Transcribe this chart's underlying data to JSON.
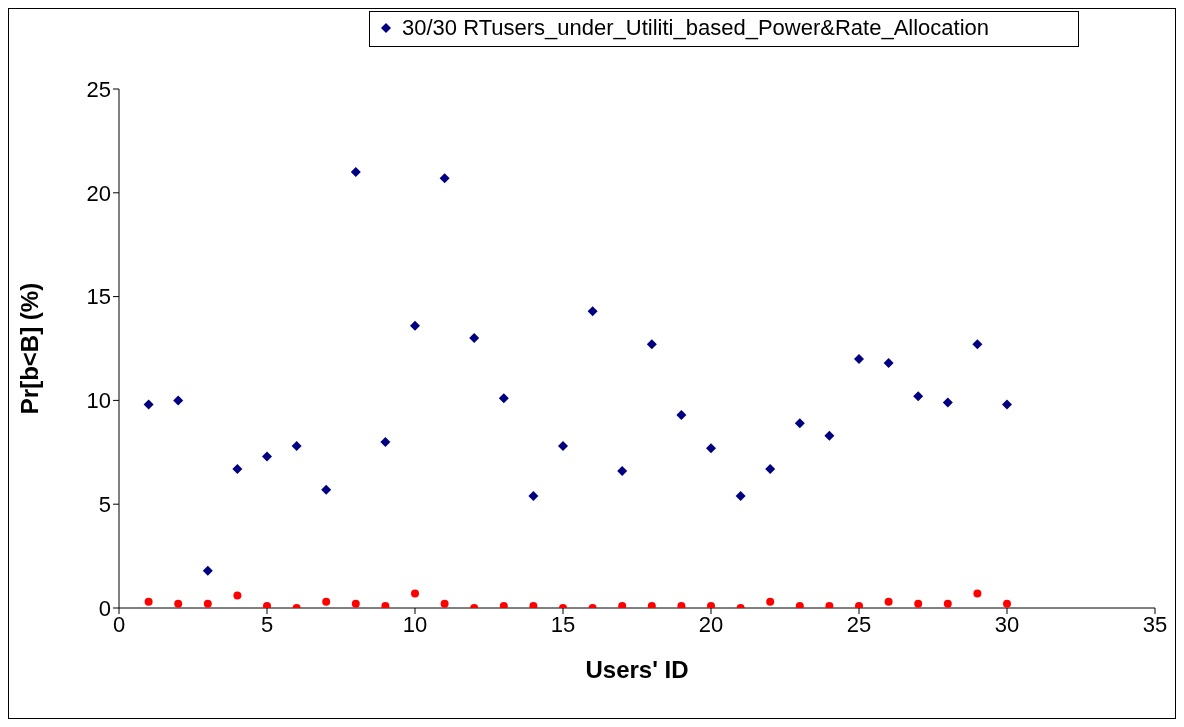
{
  "chart_data": {
    "type": "scatter",
    "xlabel": "Users' ID",
    "ylabel": "Pr[b<B] (%)",
    "xlim": [
      0,
      35
    ],
    "xticks": [
      0,
      5,
      10,
      15,
      20,
      25,
      30,
      35
    ],
    "ylim": [
      0,
      25
    ],
    "yticks": [
      0,
      5,
      10,
      15,
      20,
      25
    ],
    "grid": false,
    "legend": "top",
    "x": [
      1,
      2,
      3,
      4,
      5,
      6,
      7,
      8,
      9,
      10,
      11,
      12,
      13,
      14,
      15,
      16,
      17,
      18,
      19,
      20,
      21,
      22,
      23,
      24,
      25,
      26,
      27,
      28,
      29,
      30
    ],
    "series": [
      {
        "name": "30/30 RTusers_under_Utiliti_based_Power&Rate_Allocation",
        "color": "#000080",
        "marker": "diamond",
        "values": [
          9.8,
          10.0,
          1.8,
          6.7,
          7.3,
          7.8,
          5.7,
          21.0,
          8.0,
          13.6,
          20.7,
          13.0,
          10.1,
          5.4,
          7.8,
          14.3,
          6.6,
          12.7,
          9.3,
          7.7,
          5.4,
          6.7,
          8.9,
          8.3,
          12.0,
          11.8,
          10.2,
          9.9,
          12.7,
          9.8
        ]
      },
      {
        "color": "#ff0000",
        "marker": "circle",
        "values": [
          0.3,
          0.2,
          0.2,
          0.6,
          0.1,
          0.0,
          0.3,
          0.2,
          0.1,
          0.7,
          0.2,
          0.0,
          0.1,
          0.1,
          0.0,
          0.0,
          0.1,
          0.1,
          0.1,
          0.1,
          0.0,
          0.3,
          0.1,
          0.1,
          0.1,
          0.3,
          0.2,
          0.2,
          0.7,
          0.2
        ]
      }
    ]
  }
}
